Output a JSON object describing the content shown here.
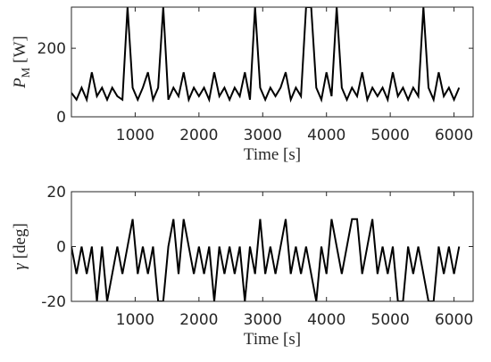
{
  "chart_data": [
    {
      "type": "line",
      "ylabel_symbol": "P",
      "ylabel_subscript": "M",
      "ylabel_unit": "[W]",
      "xlabel": "Time [s]",
      "xlim": [
        0,
        6300
      ],
      "ylim": [
        0,
        320
      ],
      "xticks": [
        1000,
        2000,
        3000,
        4000,
        5000,
        6000
      ],
      "yticks": [
        0,
        200
      ],
      "color": "#000000",
      "x": [
        0,
        80,
        160,
        240,
        320,
        400,
        480,
        560,
        640,
        720,
        800,
        880,
        960,
        1040,
        1120,
        1200,
        1280,
        1360,
        1440,
        1520,
        1600,
        1680,
        1760,
        1840,
        1920,
        2000,
        2080,
        2160,
        2240,
        2320,
        2400,
        2480,
        2560,
        2640,
        2720,
        2800,
        2880,
        2960,
        3040,
        3120,
        3200,
        3280,
        3360,
        3440,
        3520,
        3600,
        3680,
        3760,
        3840,
        3920,
        4000,
        4080,
        4160,
        4240,
        4320,
        4400,
        4480,
        4560,
        4640,
        4720,
        4800,
        4880,
        4960,
        5040,
        5120,
        5200,
        5280,
        5360,
        5440,
        5520,
        5600,
        5680,
        5760,
        5840,
        5920,
        6000,
        6080
      ],
      "values": [
        70,
        50,
        85,
        50,
        130,
        60,
        85,
        50,
        85,
        60,
        50,
        320,
        85,
        50,
        85,
        130,
        50,
        85,
        320,
        50,
        85,
        60,
        130,
        50,
        85,
        60,
        85,
        50,
        130,
        60,
        85,
        50,
        85,
        60,
        130,
        50,
        320,
        85,
        50,
        85,
        60,
        85,
        130,
        50,
        85,
        60,
        320,
        320,
        85,
        50,
        130,
        60,
        320,
        85,
        50,
        85,
        60,
        130,
        50,
        85,
        60,
        85,
        50,
        130,
        60,
        85,
        50,
        85,
        60,
        320,
        85,
        50,
        130,
        60,
        85,
        50,
        85
      ]
    },
    {
      "type": "line",
      "ylabel_symbol": "γ",
      "ylabel_unit": "[deg]",
      "xlabel": "Time [s]",
      "xlim": [
        0,
        6300
      ],
      "ylim": [
        -20,
        20
      ],
      "xticks": [
        1000,
        2000,
        3000,
        4000,
        5000,
        6000
      ],
      "yticks": [
        -20,
        0,
        20
      ],
      "color": "#000000",
      "x": [
        0,
        80,
        160,
        240,
        320,
        400,
        480,
        560,
        640,
        720,
        800,
        880,
        960,
        1040,
        1120,
        1200,
        1280,
        1360,
        1440,
        1520,
        1600,
        1680,
        1760,
        1840,
        1920,
        2000,
        2080,
        2160,
        2240,
        2320,
        2400,
        2480,
        2560,
        2640,
        2720,
        2800,
        2880,
        2960,
        3040,
        3120,
        3200,
        3280,
        3360,
        3440,
        3520,
        3600,
        3680,
        3760,
        3840,
        3920,
        4000,
        4080,
        4160,
        4240,
        4320,
        4400,
        4480,
        4560,
        4640,
        4720,
        4800,
        4880,
        4960,
        5040,
        5120,
        5200,
        5280,
        5360,
        5440,
        5520,
        5600,
        5680,
        5760,
        5840,
        5920,
        6000,
        6080
      ],
      "values": [
        0,
        -10,
        0,
        -10,
        0,
        -20,
        0,
        -20,
        -10,
        0,
        -10,
        0,
        10,
        -10,
        0,
        -10,
        0,
        -20,
        -20,
        0,
        10,
        -10,
        10,
        0,
        -10,
        0,
        -10,
        0,
        -20,
        0,
        -10,
        0,
        -10,
        0,
        -20,
        0,
        -10,
        10,
        -10,
        0,
        -10,
        0,
        10,
        -10,
        0,
        -10,
        0,
        -10,
        -20,
        0,
        -10,
        10,
        0,
        -10,
        0,
        10,
        10,
        -10,
        0,
        10,
        -10,
        0,
        -10,
        0,
        -20,
        -20,
        0,
        -10,
        0,
        -10,
        -20,
        -20,
        0,
        -10,
        0,
        -10,
        0
      ]
    }
  ]
}
